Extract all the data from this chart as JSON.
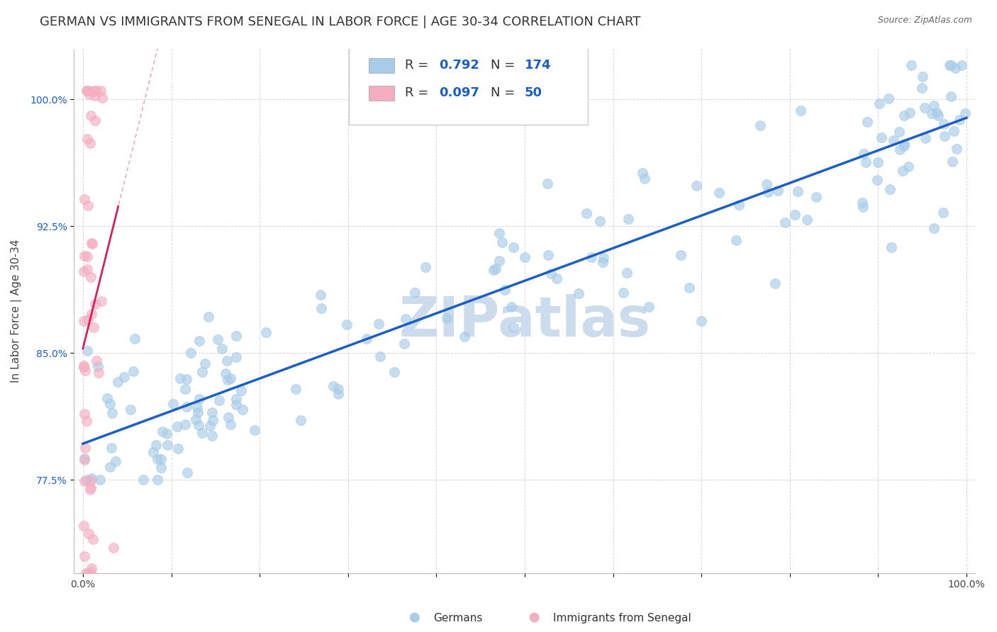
{
  "title": "GERMAN VS IMMIGRANTS FROM SENEGAL IN LABOR FORCE | AGE 30-34 CORRELATION CHART",
  "source": "Source: ZipAtlas.com",
  "ylabel": "In Labor Force | Age 30-34",
  "r_german": 0.792,
  "n_german": 174,
  "r_senegal": 0.097,
  "n_senegal": 50,
  "xmin": 0.0,
  "xmax": 1.0,
  "ymin": 0.72,
  "ymax": 1.03,
  "yticks": [
    0.775,
    0.85,
    0.925,
    1.0
  ],
  "ytick_labels": [
    "77.5%",
    "85.0%",
    "92.5%",
    "100.0%"
  ],
  "xticks": [
    0.0,
    0.1,
    0.2,
    0.3,
    0.4,
    0.5,
    0.6,
    0.7,
    0.8,
    0.9,
    1.0
  ],
  "xtick_labels": [
    "0.0%",
    "",
    "",
    "",
    "",
    "",
    "",
    "",
    "",
    "",
    "100.0%"
  ],
  "color_german": "#a8cce8",
  "color_senegal": "#f4aec0",
  "color_line_german": "#1a5fc8",
  "color_line_senegal": "#d42060",
  "color_title": "#333333",
  "color_source": "#666666",
  "watermark_text": "ZIPatlas",
  "watermark_color": "#ccdcec",
  "legend_r_color": "#1a5fc8",
  "legend_n_color": "#1a5fc8",
  "legend_label_german": "Germans",
  "legend_label_senegal": "Immigrants from Senegal",
  "background_color": "#ffffff",
  "grid_color": "#cccccc",
  "title_fontsize": 13,
  "axis_label_fontsize": 11,
  "tick_fontsize": 10,
  "legend_fontsize": 13
}
